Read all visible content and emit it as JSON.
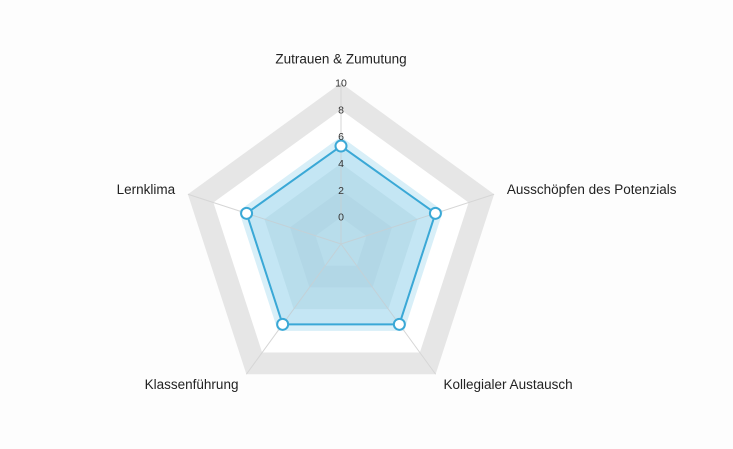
{
  "chart_data": {
    "type": "radar",
    "axes": [
      "Zutrauen & Zumutung",
      "Ausschöpfen des Potenzials",
      "Kollegialer Austausch",
      "Klassenführung",
      "Lernklima"
    ],
    "series": [
      {
        "values": [
          5.3,
          5.4,
          5.4,
          5.4,
          5.4
        ]
      }
    ],
    "rlim": [
      -2,
      10
    ],
    "ticks": [
      0,
      2,
      4,
      6,
      8,
      10
    ],
    "tick_labels": [
      "0",
      "2",
      "4",
      "6",
      "8",
      "10"
    ],
    "grid": true,
    "legend": false
  },
  "colors": {
    "band_gray": "#e6e6e6",
    "band_white": "#ffffff",
    "band_light_blue": "#d8eff8",
    "band_mid_blue": "#c9e4ee",
    "band_dark_blue": "#c2dde8",
    "series_line": "#3aa8d6",
    "series_fill": "#5ab4dc",
    "marker_fill": "#ffffff",
    "gridline": "#d6d6d6"
  }
}
